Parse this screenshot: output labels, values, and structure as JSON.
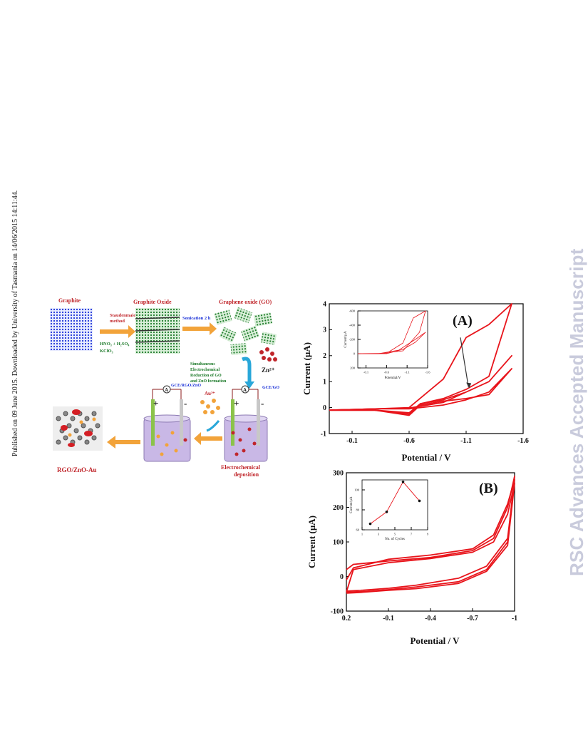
{
  "side_note": "Published on 09 June 2015. Downloaded by University of Tasmania on 14/06/2015 14:11:44.",
  "watermark": "RSC Advances Accepted Manuscript",
  "scheme": {
    "graphite": "Graphite",
    "graphite_oxide": "Graphite Oxide",
    "graphene_oxide": "Graphene oxide (GO)",
    "staudenmaier_1": "Staudenmaier",
    "staudenmaier_2": "method",
    "acids": "HNO₃ + H₂SO₄",
    "kclo3": "KClO₃",
    "sonication": "Sonication 2 h",
    "simul_1": "Simultaneous",
    "simul_2": "Electrochemical",
    "simul_3": "Reduction of GO",
    "simul_4": "and ZnO formation",
    "zn": "Zn²⁺",
    "au": "Au³⁺",
    "electrode_left": "GCE/RGO/ZnO",
    "electrode_right": "GCE/GO",
    "plus": "+",
    "minus": "-",
    "ammeter": "A",
    "product": "RGO/ZnO-Au",
    "electrochem_1": "Electrochemical",
    "electrochem_2": "deposition"
  },
  "chart_data": [
    {
      "type": "line",
      "panel_label": "(A)",
      "xlabel": "Potential / V",
      "ylabel": "Current (µA)",
      "xlim": [
        0.1,
        -1.6
      ],
      "ylim": [
        -1,
        4
      ],
      "x_ticks": [
        -0.1,
        -0.6,
        -1.1,
        -1.6
      ],
      "y_ticks": [
        -1,
        0,
        1,
        2,
        3,
        4
      ],
      "color": "#e8141b",
      "series": [
        {
          "x": [
            0.1,
            -0.3,
            -0.6,
            -0.9,
            -1.1,
            -1.3,
            -1.5,
            -1.3,
            -1.1,
            -0.9,
            -0.7,
            -0.6,
            -0.3,
            0.1
          ],
          "y": [
            -0.1,
            -0.05,
            -0.05,
            0.1,
            0.3,
            0.6,
            1.5,
            0.5,
            0.35,
            0.25,
            0.1,
            -0.3,
            -0.1,
            -0.1
          ]
        },
        {
          "x": [
            0.1,
            -0.3,
            -0.6,
            -0.9,
            -1.1,
            -1.3,
            -1.5,
            -1.3,
            -1.1,
            -0.9,
            -0.7,
            -0.6,
            -0.3,
            0.1
          ],
          "y": [
            -0.1,
            -0.05,
            -0.02,
            0.2,
            0.6,
            1.0,
            2.0,
            1.0,
            0.6,
            0.3,
            0.15,
            -0.25,
            -0.1,
            -0.1
          ]
        },
        {
          "x": [
            0.1,
            -0.3,
            -0.6,
            -0.9,
            -1.1,
            -1.3,
            -1.5,
            -1.3,
            -1.1,
            -0.9,
            -0.7,
            -0.6,
            -0.3,
            0.1
          ],
          "y": [
            -0.1,
            -0.05,
            0.0,
            1.1,
            2.7,
            3.2,
            4.0,
            1.2,
            0.7,
            0.35,
            0.15,
            -0.2,
            -0.1,
            -0.1
          ]
        }
      ],
      "arrow": {
        "x1": -1.05,
        "y1": 2.7,
        "x2": -1.12,
        "y2": 0.8
      },
      "inset": {
        "xlabel": "Potential/V",
        "ylabel": "Current/µA",
        "xlim": [
          0.1,
          -1.6
        ],
        "ylim": [
          200,
          -600
        ],
        "x_ticks": [
          -0.1,
          -0.6,
          -1.1,
          -1.6
        ],
        "y_ticks": [
          -600,
          -400,
          -200,
          0,
          200
        ],
        "series": [
          {
            "x": [
              0.1,
              -0.6,
              -1.0,
              -1.3,
              -1.55,
              -1.3,
              -0.9,
              -0.4,
              0.1
            ],
            "y": [
              0,
              0,
              -60,
              -160,
              -300,
              -200,
              -50,
              0,
              0
            ]
          },
          {
            "x": [
              0.1,
              -0.6,
              -1.0,
              -1.25,
              -1.55,
              -1.4,
              -1.0,
              -0.4,
              0.1
            ],
            "y": [
              0,
              -5,
              -150,
              -500,
              -600,
              -300,
              -40,
              0,
              0
            ]
          }
        ]
      }
    },
    {
      "type": "line",
      "panel_label": "(B)",
      "xlabel": "Potential / V",
      "ylabel": "Current (µA)",
      "xlim": [
        0.2,
        -1
      ],
      "ylim": [
        -100,
        300
      ],
      "x_ticks": [
        0.2,
        -0.1,
        -0.4,
        -0.7,
        -1
      ],
      "y_ticks": [
        -100,
        0,
        100,
        200,
        300
      ],
      "color": "#e8141b",
      "series": [
        {
          "x": [
            0.2,
            0.15,
            -0.1,
            -0.4,
            -0.7,
            -0.85,
            -0.95,
            -1,
            -0.95,
            -0.8,
            -0.6,
            -0.3,
            -0.1,
            0.1,
            0.2
          ],
          "y": [
            20,
            35,
            45,
            55,
            75,
            110,
            200,
            290,
            100,
            20,
            -15,
            -30,
            -38,
            -44,
            -45
          ]
        },
        {
          "x": [
            0.2,
            0.15,
            -0.1,
            -0.4,
            -0.7,
            -0.85,
            -0.95,
            -1,
            -0.95,
            -0.8,
            -0.6,
            -0.3,
            -0.1,
            0.1,
            0.2
          ],
          "y": [
            -10,
            25,
            50,
            62,
            80,
            120,
            210,
            280,
            110,
            30,
            -5,
            -25,
            -34,
            -40,
            -42
          ]
        },
        {
          "x": [
            0.2,
            0.15,
            -0.1,
            -0.4,
            -0.7,
            -0.85,
            -0.95,
            -1,
            -0.95,
            -0.8,
            -0.6,
            -0.3,
            -0.1,
            0.1,
            0.2
          ],
          "y": [
            -45,
            20,
            40,
            52,
            70,
            100,
            180,
            270,
            90,
            15,
            -20,
            -35,
            -40,
            -46,
            -48
          ]
        }
      ],
      "inset": {
        "xlabel": "No. of Cycles",
        "ylabel": "Current/µA",
        "xlim": [
          1,
          9
        ],
        "ylim": [
          60,
          110
        ],
        "x_ticks": [
          1,
          3,
          5,
          7,
          9
        ],
        "y_ticks": [
          60,
          80,
          100
        ],
        "points": {
          "x": [
            2,
            4,
            6,
            8
          ],
          "y": [
            66,
            78,
            108,
            89
          ]
        }
      }
    }
  ]
}
